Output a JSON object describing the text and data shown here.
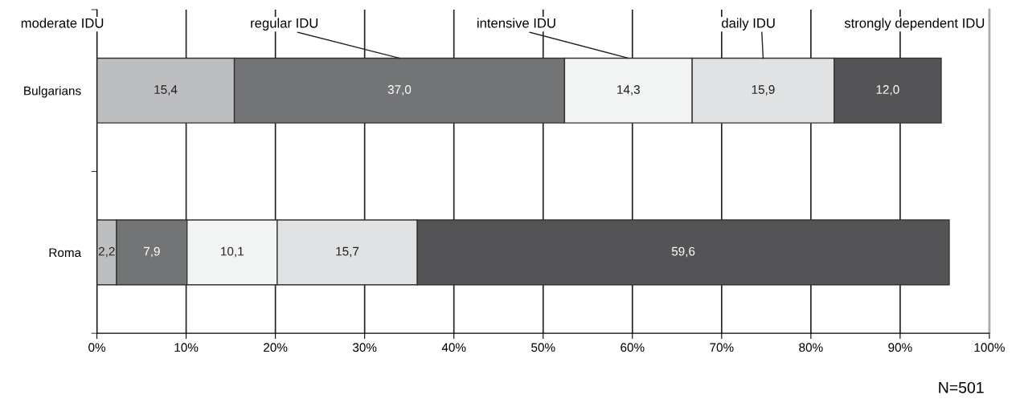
{
  "chart_data": {
    "type": "bar",
    "orientation": "horizontal",
    "stacked": true,
    "categories": [
      "Bulgarians",
      "Roma"
    ],
    "series": [
      {
        "name": "moderate IDU",
        "color": "#bdbec0",
        "values": [
          15.4,
          2.2
        ],
        "value_labels": [
          "15,4",
          "2,2"
        ]
      },
      {
        "name": "regular IDU",
        "color": "#737476",
        "values": [
          37.0,
          7.9
        ],
        "value_labels": [
          "37,0",
          "7,9"
        ]
      },
      {
        "name": "intensive IDU",
        "color": "#f2f3f3",
        "values": [
          14.3,
          10.1
        ],
        "value_labels": [
          "14,3",
          "10,1"
        ]
      },
      {
        "name": "daily IDU",
        "color": "#e1e2e3",
        "values": [
          15.9,
          15.7
        ],
        "value_labels": [
          "15,9",
          "15,7"
        ]
      },
      {
        "name": "strongly dependent IDU",
        "color": "#545456",
        "values": [
          12.0,
          59.6
        ],
        "value_labels": [
          "12,0",
          "59,6"
        ]
      }
    ],
    "xlim": [
      0,
      100
    ],
    "xticks": [
      {
        "value": 0,
        "label": "0%"
      },
      {
        "value": 10,
        "label": "10%"
      },
      {
        "value": 20,
        "label": "20%"
      },
      {
        "value": 30,
        "label": "30%"
      },
      {
        "value": 40,
        "label": "40%"
      },
      {
        "value": 50,
        "label": "50%"
      },
      {
        "value": 60,
        "label": "60%"
      },
      {
        "value": 70,
        "label": "70%"
      },
      {
        "value": 80,
        "label": "80%"
      },
      {
        "value": 90,
        "label": "90%"
      },
      {
        "value": 100,
        "label": "100%"
      }
    ],
    "grid": "x",
    "legend": "top",
    "annotations": [
      "N=501"
    ]
  }
}
